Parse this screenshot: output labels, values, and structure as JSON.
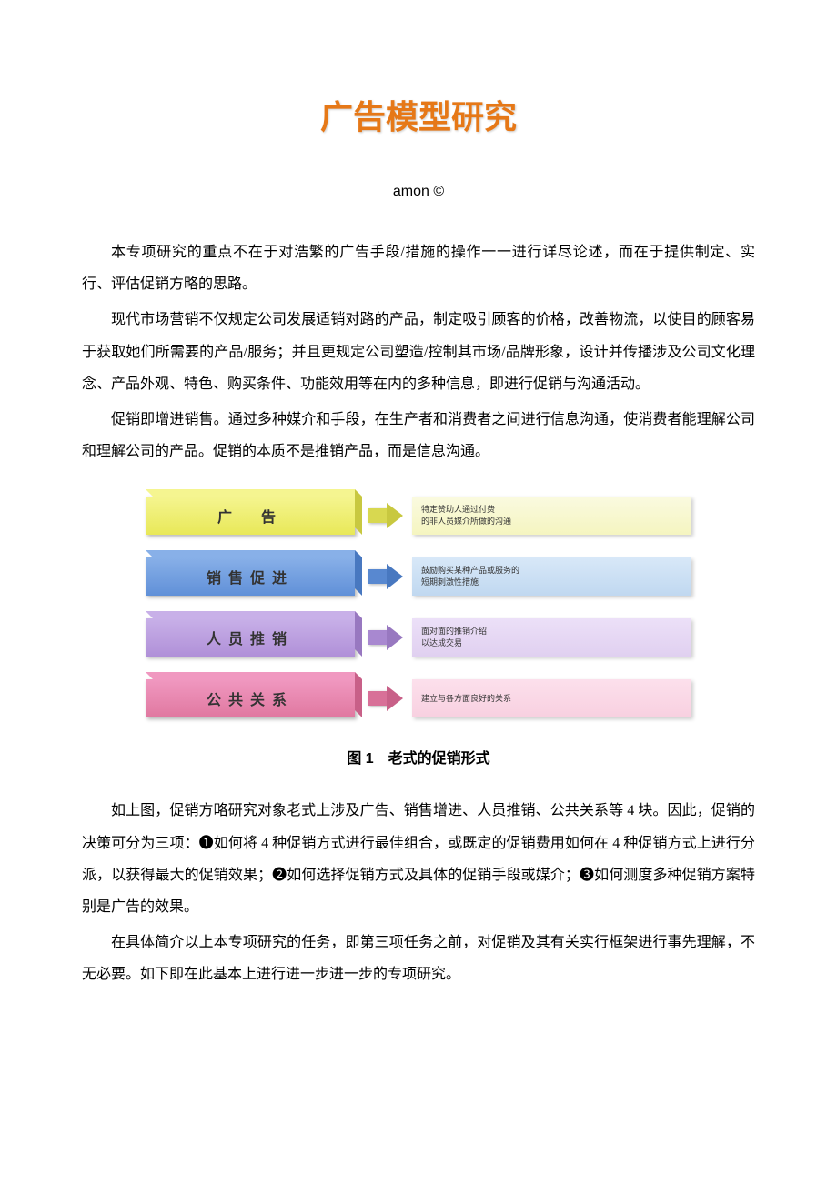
{
  "title": "广告模型研究",
  "author": "amon ©",
  "paragraphs": {
    "p1": "本专项研究的重点不在于对浩繁的广告手段/措施的操作一一进行详尽论述，而在于提供制定、实行、评估促销方略的思路。",
    "p2": "现代市场营销不仅规定公司发展适销对路的产品，制定吸引顾客的价格，改善物流，以使目的顾客易于获取她们所需要的产品/服务；并且更规定公司塑造/控制其市场/品牌形象，设计并传播涉及公司文化理念、产品外观、特色、购买条件、功能效用等在内的多种信息，即进行促销与沟通活动。",
    "p3": "促销即增进销售。通过多种媒介和手段，在生产者和消费者之间进行信息沟通，使消费者能理解公司和理解公司的产品。促销的本质不是推销产品，而是信息沟通。",
    "p4": "如上图，促销方略研究对象老式上涉及广告、销售增进、人员推销、公共关系等 4 块。因此，促销的决策可分为三项：❶如何将 4 种促销方式进行最佳组合，或既定的促销费用如何在 4 种促销方式上进行分派，以获得最大的促销效果；❷如何选择促销方式及具体的促销手段或媒介；❸如何测度多种促销方案特别是广告的效果。",
    "p5": "在具体简介以上本专项研究的任务，即第三项任务之前，对促销及其有关实行框架进行事先理解，不无必要。如下即在此基本上进行进一步进一步的专项研究。"
  },
  "figure_caption": "图 1　老式的促销形式",
  "diagram": {
    "rows": [
      {
        "label": "广　告",
        "bar_color": "#e8e858",
        "bar_top": "#f5f590",
        "bar_side": "#c8c840",
        "arrow_color": "#d8d850",
        "arrow_head": "#c8c840",
        "desc_bg": "#f5f5c0",
        "desc_top": "#fafae0",
        "desc_side": "#e0e0a0",
        "desc_line1": "特定赞助人通过付费",
        "desc_line2": "的非人员媒介所做的沟通"
      },
      {
        "label": "销售促进",
        "bar_color": "#6090d8",
        "bar_top": "#88b0e8",
        "bar_side": "#4878c0",
        "arrow_color": "#5888d0",
        "arrow_head": "#4878c0",
        "desc_bg": "#c0d8f0",
        "desc_top": "#d8e8f8",
        "desc_side": "#a0c0e0",
        "desc_line1": "鼓励购买某种产品或服务的",
        "desc_line2": "短期刺激性措施"
      },
      {
        "label": "人员推销",
        "bar_color": "#b090d8",
        "bar_top": "#c8b0e8",
        "bar_side": "#9878c0",
        "arrow_color": "#a888d0",
        "arrow_head": "#9878c0",
        "desc_bg": "#e0d0f0",
        "desc_top": "#ece0f8",
        "desc_side": "#c8b0e0",
        "desc_line1": "面对面的推销介绍",
        "desc_line2": "以达成交易"
      },
      {
        "label": "公共关系",
        "bar_color": "#e078a0",
        "bar_top": "#f098c0",
        "bar_side": "#c86088",
        "arrow_color": "#d87098",
        "arrow_head": "#c86088",
        "desc_bg": "#f8d0e0",
        "desc_top": "#fce0ec",
        "desc_side": "#e8b0c8",
        "desc_line1": "建立与各方面良好的关系",
        "desc_line2": ""
      }
    ]
  },
  "colors": {
    "title_color": "#e67817",
    "text_color": "#000000",
    "background": "#ffffff"
  }
}
